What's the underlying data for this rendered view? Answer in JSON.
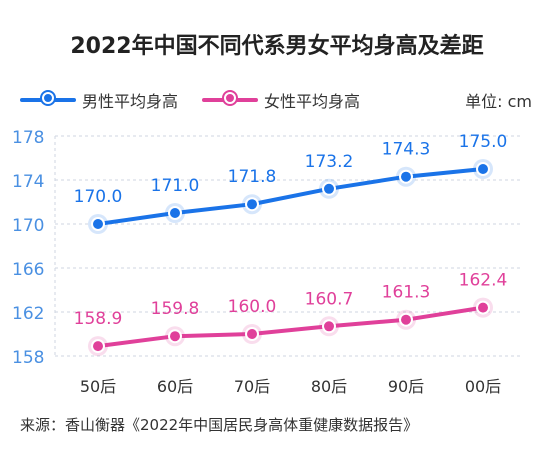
{
  "title": "2022年中国不同代系男女平均身高及差距",
  "unit": "单位: cm",
  "source": "来源：香山衡器《2022年中国居民身高体重健康数据报告》",
  "colors": {
    "male": "#1a73e8",
    "female": "#e0409a",
    "axis": "#4a90e2",
    "grid": "#cfd6e0"
  },
  "chart_data": {
    "type": "line",
    "title": "2022年中国不同代系男女平均身高及差距",
    "categories": [
      "50后",
      "60后",
      "70后",
      "80后",
      "90后",
      "00后"
    ],
    "series": [
      {
        "name": "男性平均身高",
        "values": [
          170.0,
          171.0,
          171.8,
          173.2,
          174.3,
          175.0
        ]
      },
      {
        "name": "女性平均身高",
        "values": [
          158.9,
          159.8,
          160.0,
          160.7,
          161.3,
          162.4
        ]
      }
    ],
    "value_labels": [
      [
        "170.0",
        "171.0",
        "171.8",
        "173.2",
        "174.3",
        "175.0"
      ],
      [
        "158.9",
        "159.8",
        "160.0",
        "160.7",
        "161.3",
        "162.4"
      ]
    ],
    "yticks": [
      "158",
      "162",
      "166",
      "170",
      "174",
      "178"
    ],
    "ylim": [
      158,
      178
    ],
    "legend": "top-left",
    "grid": true
  }
}
